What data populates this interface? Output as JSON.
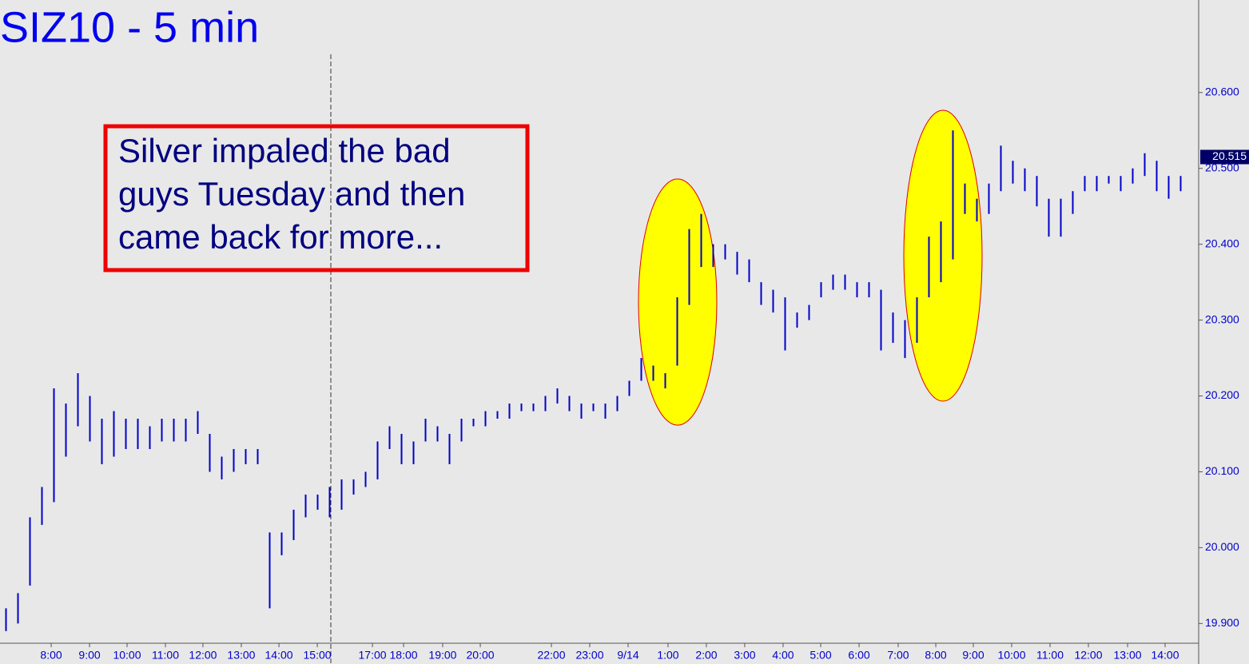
{
  "chart_data": {
    "type": "range-bar",
    "title": "SIZ10 - 5 min",
    "annotation": [
      "Silver impaled the bad",
      "guys Tuesday and then",
      "came back for more..."
    ],
    "color": "#0000cc",
    "high": [
      19.92,
      19.94,
      20.04,
      20.08,
      20.21,
      20.19,
      20.23,
      20.2,
      20.17,
      20.18,
      20.17,
      20.17,
      20.16,
      20.17,
      20.17,
      20.17,
      20.18,
      20.15,
      20.12,
      20.13,
      20.13,
      20.13,
      20.02,
      20.02,
      20.05,
      20.07,
      20.07,
      20.08,
      20.09,
      20.09,
      20.1,
      20.14,
      20.16,
      20.15,
      20.14,
      20.17,
      20.16,
      20.15,
      20.17,
      20.17,
      20.18,
      20.18,
      20.19,
      20.19,
      20.19,
      20.2,
      20.21,
      20.2,
      20.19,
      20.19,
      20.19,
      20.2,
      20.22,
      20.25,
      20.24,
      20.23,
      20.33,
      20.42,
      20.44,
      20.4,
      20.4,
      20.39,
      20.38,
      20.35,
      20.34,
      20.33,
      20.31,
      20.32,
      20.35,
      20.36,
      20.36,
      20.35,
      20.35,
      20.34,
      20.31,
      20.3,
      20.33,
      20.41,
      20.43,
      20.55,
      20.48,
      20.46,
      20.48,
      20.53,
      20.51,
      20.5,
      20.49,
      20.46,
      20.46,
      20.47,
      20.49,
      20.49,
      20.49,
      20.49,
      20.5,
      20.52,
      20.51,
      20.49,
      20.49
    ],
    "low": [
      19.89,
      19.9,
      19.95,
      20.03,
      20.06,
      20.12,
      20.16,
      20.14,
      20.11,
      20.12,
      20.13,
      20.13,
      20.13,
      20.14,
      20.14,
      20.14,
      20.15,
      20.1,
      20.09,
      20.1,
      20.11,
      20.11,
      19.92,
      19.99,
      20.01,
      20.04,
      20.05,
      20.04,
      20.05,
      20.07,
      20.08,
      20.09,
      20.13,
      20.11,
      20.11,
      20.14,
      20.14,
      20.11,
      20.14,
      20.16,
      20.16,
      20.17,
      20.17,
      20.18,
      20.18,
      20.18,
      20.19,
      20.18,
      20.17,
      20.18,
      20.17,
      20.18,
      20.2,
      20.22,
      20.22,
      20.21,
      20.24,
      20.32,
      20.37,
      20.37,
      20.38,
      20.36,
      20.35,
      20.32,
      20.31,
      20.26,
      20.29,
      20.3,
      20.33,
      20.34,
      20.34,
      20.33,
      20.33,
      20.26,
      20.27,
      20.25,
      20.27,
      20.33,
      20.35,
      20.38,
      20.44,
      20.43,
      20.44,
      20.47,
      20.48,
      20.47,
      20.45,
      20.41,
      20.41,
      20.44,
      20.47,
      20.47,
      20.48,
      20.47,
      20.48,
      20.49,
      20.47,
      20.46,
      20.47
    ],
    "xlim": [
      0,
      100
    ],
    "xticks": [
      {
        "value": 4.27,
        "label": "8:00"
      },
      {
        "value": 7.47,
        "label": "9:00"
      },
      {
        "value": 10.6,
        "label": "10:00"
      },
      {
        "value": 13.8,
        "label": "11:00"
      },
      {
        "value": 16.93,
        "label": "12:00"
      },
      {
        "value": 20.13,
        "label": "13:00"
      },
      {
        "value": 23.27,
        "label": "14:00"
      },
      {
        "value": 26.47,
        "label": "15:00"
      },
      {
        "value": 31.07,
        "label": "17:00"
      },
      {
        "value": 33.67,
        "label": "18:00"
      },
      {
        "value": 36.93,
        "label": "19:00"
      },
      {
        "value": 40.07,
        "label": "20:00"
      },
      {
        "value": 46,
        "label": "22:00"
      },
      {
        "value": 49.2,
        "label": "23:00"
      },
      {
        "value": 52.4,
        "label": "9/14"
      },
      {
        "value": 55.73,
        "label": "1:00"
      },
      {
        "value": 58.93,
        "label": "2:00"
      },
      {
        "value": 62.13,
        "label": "3:00"
      },
      {
        "value": 65.33,
        "label": "4:00"
      },
      {
        "value": 68.47,
        "label": "5:00"
      },
      {
        "value": 71.67,
        "label": "6:00"
      },
      {
        "value": 74.93,
        "label": "7:00"
      },
      {
        "value": 78.07,
        "label": "8:00"
      },
      {
        "value": 81.2,
        "label": "9:00"
      },
      {
        "value": 84.4,
        "label": "10:00"
      },
      {
        "value": 87.6,
        "label": "11:00"
      },
      {
        "value": 90.8,
        "label": "12:00"
      },
      {
        "value": 94.07,
        "label": "13:00"
      },
      {
        "value": 97.2,
        "label": "14:00"
      }
    ],
    "ylim": [
      19.874,
      20.722
    ],
    "yticks": [
      {
        "value": 19.9,
        "label": "19.900"
      },
      {
        "value": 20.0,
        "label": "20.000"
      },
      {
        "value": 20.1,
        "label": "20.100"
      },
      {
        "value": 20.2,
        "label": "20.200"
      },
      {
        "value": 20.3,
        "label": "20.300"
      },
      {
        "value": 20.4,
        "label": "20.400"
      },
      {
        "value": 20.5,
        "label": "20.500"
      },
      {
        "value": 20.6,
        "label": "20.600"
      }
    ],
    "last": {
      "value": 20.515,
      "label": "20.515"
    }
  }
}
